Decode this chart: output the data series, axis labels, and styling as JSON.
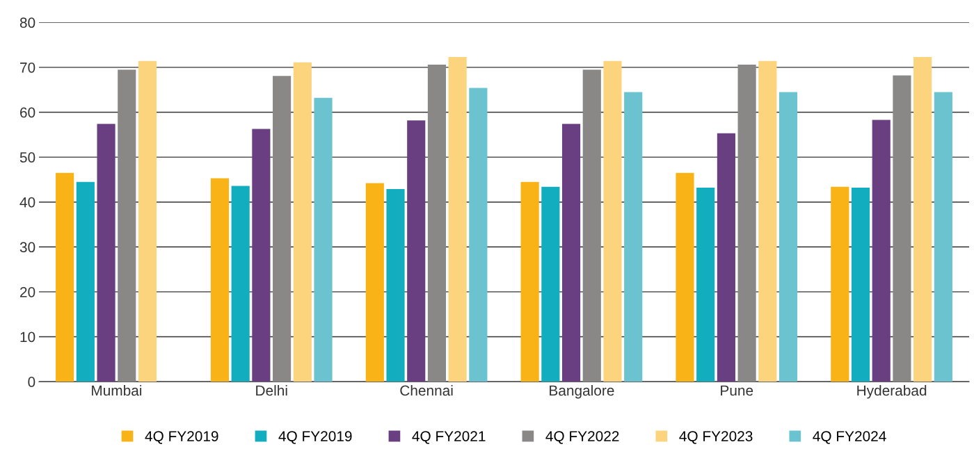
{
  "chart_data": {
    "type": "bar",
    "categories": [
      "Mumbai",
      "Delhi",
      "Chennai",
      "Bangalore",
      "Pune",
      "Hyderabad"
    ],
    "series": [
      {
        "name": "4Q FY2019",
        "color": "#f9b316",
        "values": [
          46.5,
          45.3,
          44.2,
          44.5,
          46.5,
          43.4
        ]
      },
      {
        "name": "4Q FY2019",
        "color": "#12aebf",
        "values": [
          44.5,
          43.6,
          42.9,
          43.4,
          43.2,
          43.2
        ]
      },
      {
        "name": "4Q FY2021",
        "color": "#6a3f82",
        "values": [
          57.4,
          56.3,
          58.2,
          57.4,
          55.3,
          58.3
        ]
      },
      {
        "name": "4Q FY2022",
        "color": "#8a8887",
        "values": [
          69.5,
          68.1,
          70.6,
          69.5,
          70.6,
          68.2
        ]
      },
      {
        "name": "4Q FY2023",
        "color": "#fcd47d",
        "values": [
          71.4,
          71.1,
          72.3,
          71.4,
          71.4,
          72.3
        ]
      },
      {
        "name": "4Q FY2024",
        "color": "#6bc3cf",
        "values": [
          null,
          63.2,
          65.4,
          64.5,
          64.5,
          64.5
        ]
      }
    ],
    "ylim": [
      0,
      80
    ],
    "yticks": [
      0,
      10,
      20,
      30,
      40,
      50,
      60,
      70,
      80
    ],
    "grid": "y",
    "legend": "bottom"
  }
}
